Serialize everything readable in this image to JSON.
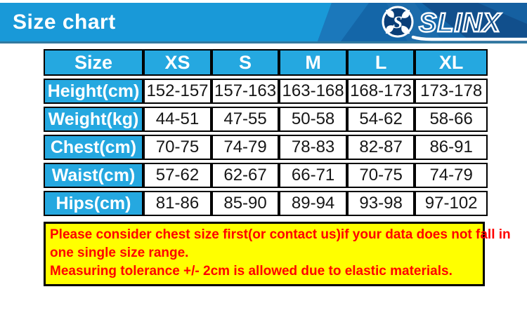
{
  "header": {
    "title": "Size chart",
    "logo": {
      "brand": "SLINX",
      "emblem_letter": "S"
    }
  },
  "size_table": {
    "columns": [
      "Size",
      "XS",
      "S",
      "M",
      "L",
      "XL"
    ],
    "rows": [
      {
        "label": "Height(cm)",
        "values": [
          "152-157",
          "157-163",
          "163-168",
          "168-173",
          "173-178"
        ]
      },
      {
        "label": "Weight(kg)",
        "values": [
          "44-51",
          "47-55",
          "50-58",
          "54-62",
          "58-66"
        ]
      },
      {
        "label": "Chest(cm)",
        "values": [
          "70-75",
          "74-79",
          "78-83",
          "82-87",
          "86-91"
        ]
      },
      {
        "label": "Waist(cm)",
        "values": [
          "57-62",
          "62-67",
          "66-71",
          "70-75",
          "74-79"
        ]
      },
      {
        "label": "Hips(cm)",
        "values": [
          "81-86",
          "85-90",
          "89-94",
          "93-98",
          "97-102"
        ]
      }
    ]
  },
  "notes": {
    "lines": [
      "Please consider chest size first(or contact us)if your data does not fall in",
      "one single size range.",
      "Measuring tolerance +/- 2cm is allowed due to elastic materials."
    ]
  },
  "colors": {
    "banner_blue": "#1999d8",
    "cell_cyan": "#25a8e0",
    "logo_panel_dark": "#1466a8",
    "note_background": "#ffff00",
    "note_text": "#ff0000",
    "table_border": "#000000"
  },
  "chart_data": {
    "type": "table",
    "title": "Size chart",
    "columns": [
      "Size",
      "XS",
      "S",
      "M",
      "L",
      "XL"
    ],
    "rows": [
      [
        "Height(cm)",
        "152-157",
        "157-163",
        "163-168",
        "168-173",
        "173-178"
      ],
      [
        "Weight(kg)",
        "44-51",
        "47-55",
        "50-58",
        "54-62",
        "58-66"
      ],
      [
        "Chest(cm)",
        "70-75",
        "74-79",
        "78-83",
        "82-87",
        "86-91"
      ],
      [
        "Waist(cm)",
        "57-62",
        "62-67",
        "66-71",
        "70-75",
        "74-79"
      ],
      [
        "Hips(cm)",
        "81-86",
        "85-90",
        "89-94",
        "93-98",
        "97-102"
      ]
    ],
    "notes": [
      "Please consider chest size first(or contact us)if your data does not fall in one single size range.",
      "Measuring tolerance +/- 2cm is allowed due to elastic materials."
    ]
  }
}
